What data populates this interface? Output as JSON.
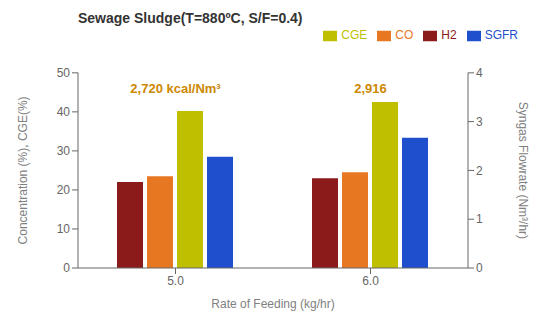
{
  "chart_data": {
    "type": "bar",
    "title": "Sewage  Sludge(T=880ºC,  S/F=0.4)",
    "xlabel": "Rate of Feeding (kg/hr)",
    "ylabel": "Concentration (%), CGE(%)",
    "y2label": "Syngas Flowrate (Nm³/hr)",
    "categories": [
      "5.0",
      "6.0"
    ],
    "series": [
      {
        "name": "H2",
        "color": "#8B1A1A",
        "values": [
          22.0,
          23.0
        ]
      },
      {
        "name": "CO",
        "color": "#E87722",
        "values": [
          23.5,
          24.5
        ]
      },
      {
        "name": "CGE",
        "color": "#BFBF00",
        "values": [
          40.2,
          42.5
        ]
      },
      {
        "name": "SGFR",
        "color": "#1F4FCC",
        "values": [
          2.28,
          2.67
        ],
        "axis": "y2"
      }
    ],
    "ylim": [
      0,
      50
    ],
    "yticks": [
      0,
      10,
      20,
      30,
      40,
      50
    ],
    "y2lim": [
      0,
      4
    ],
    "y2ticks": [
      0,
      1,
      2,
      3,
      4
    ],
    "grid": false,
    "legend": "upper right",
    "annotations": [
      {
        "text": "2,720 kcal/Nm³",
        "x": "5.0",
        "y": 46,
        "color": "#CC8800"
      },
      {
        "text": "2,916",
        "x": "6.0",
        "y": 46,
        "color": "#CC8800"
      }
    ]
  }
}
